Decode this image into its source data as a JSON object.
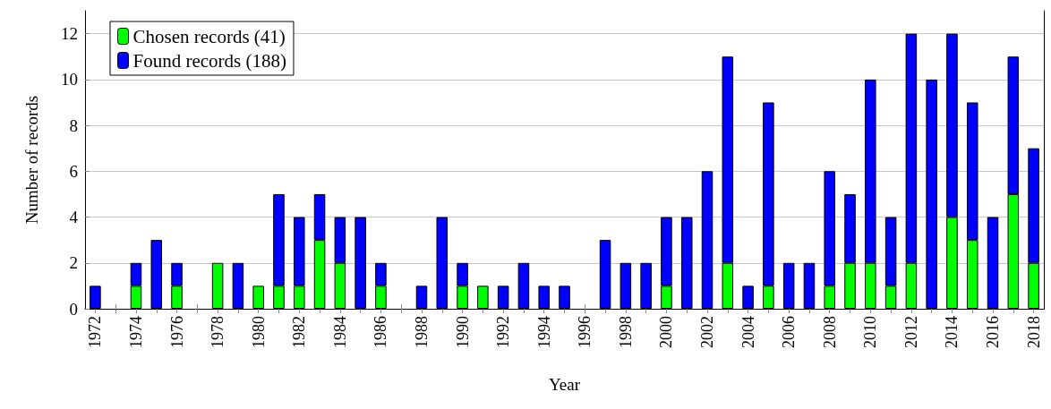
{
  "chart_data": {
    "type": "bar",
    "stacked": true,
    "xlabel": "Year",
    "ylabel": "Number of records",
    "categories": [
      "1972",
      null,
      "1974",
      null,
      "1976",
      null,
      "1978",
      null,
      "1980",
      null,
      "1982",
      null,
      "1984",
      null,
      "1986",
      null,
      "1988",
      null,
      "1990",
      null,
      "1992",
      null,
      "1994",
      null,
      "1996",
      null,
      "1998",
      null,
      "2000",
      null,
      "2002",
      null,
      "2004",
      null,
      "2006",
      null,
      "2008",
      null,
      "2010",
      null,
      "2012",
      null,
      "2014",
      null,
      "2016",
      null,
      "2018"
    ],
    "series": [
      {
        "name": "Chosen records (41)",
        "color": "#00ff00",
        "values": [
          null,
          null,
          1,
          null,
          1,
          null,
          2,
          null,
          1,
          1,
          1,
          3,
          2,
          null,
          1,
          null,
          null,
          null,
          1,
          1,
          null,
          null,
          null,
          null,
          null,
          null,
          null,
          null,
          1,
          null,
          null,
          2,
          null,
          1,
          null,
          null,
          1,
          2,
          2,
          1,
          2,
          null,
          4,
          3,
          null,
          5,
          2
        ]
      },
      {
        "name": "Found records (188)",
        "color": "#0000ff",
        "values": [
          1,
          null,
          1,
          3,
          1,
          null,
          null,
          2,
          null,
          4,
          3,
          2,
          2,
          4,
          1,
          null,
          1,
          4,
          1,
          null,
          1,
          2,
          1,
          1,
          null,
          3,
          2,
          2,
          3,
          4,
          6,
          9,
          1,
          8,
          2,
          2,
          5,
          3,
          8,
          3,
          10,
          10,
          8,
          6,
          4,
          6,
          5
        ]
      }
    ],
    "ylim": [
      0,
      13
    ],
    "yticks": [
      0,
      2,
      4,
      6,
      8,
      10,
      12
    ],
    "grid": "y",
    "legend": "top left"
  }
}
